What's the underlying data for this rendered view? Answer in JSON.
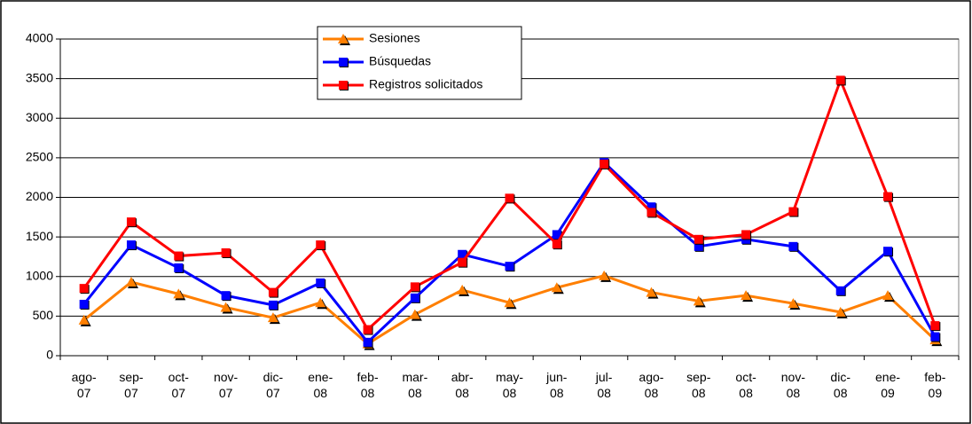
{
  "chart_data": {
    "type": "line",
    "categories": [
      "ago-07",
      "sep-07",
      "oct-07",
      "nov-07",
      "dic-07",
      "ene-08",
      "feb-08",
      "mar-08",
      "abr-08",
      "may-08",
      "jun-08",
      "jul-08",
      "ago-08",
      "sep-08",
      "oct-08",
      "nov-08",
      "dic-08",
      "ene-09",
      "feb-09"
    ],
    "series": [
      {
        "name": "Sesiones",
        "color": "#ff7f00",
        "marker": "triangle",
        "values": [
          450,
          930,
          780,
          610,
          480,
          670,
          150,
          520,
          830,
          670,
          860,
          1010,
          800,
          690,
          760,
          660,
          550,
          760,
          200
        ]
      },
      {
        "name": "Búsquedas",
        "color": "#0000ff",
        "marker": "square",
        "values": [
          650,
          1400,
          1110,
          760,
          640,
          920,
          170,
          730,
          1280,
          1130,
          1530,
          2440,
          1880,
          1380,
          1470,
          1380,
          820,
          1320,
          240
        ]
      },
      {
        "name": "Registros solicitados",
        "color": "#ff0000",
        "marker": "square",
        "values": [
          850,
          1690,
          1260,
          1300,
          800,
          1400,
          330,
          870,
          1180,
          1990,
          1410,
          2420,
          1810,
          1470,
          1530,
          1820,
          3480,
          2010,
          380
        ]
      }
    ],
    "ylim": [
      0,
      4000
    ],
    "yticks": [
      0,
      500,
      1000,
      1500,
      2000,
      2500,
      3000,
      3500,
      4000
    ],
    "grid": true
  }
}
